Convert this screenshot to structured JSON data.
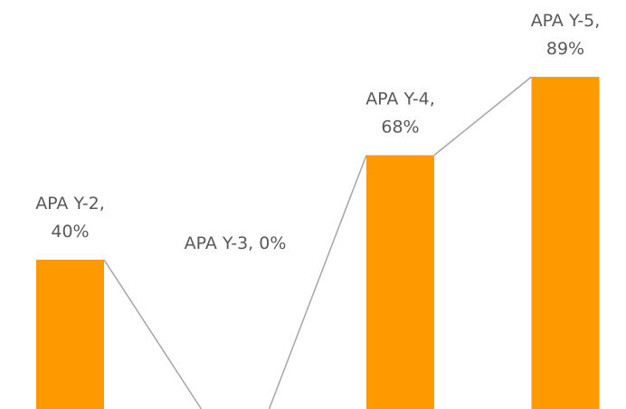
{
  "chart_data": {
    "type": "bar",
    "categories": [
      "APA Y-2",
      "APA Y-3",
      "APA Y-4",
      "APA Y-5"
    ],
    "values": [
      40,
      0,
      68,
      89
    ],
    "value_labels": [
      "40%",
      "0%",
      "68%",
      "89%"
    ],
    "color": "#ff9900",
    "ylim": [
      0,
      100
    ]
  }
}
